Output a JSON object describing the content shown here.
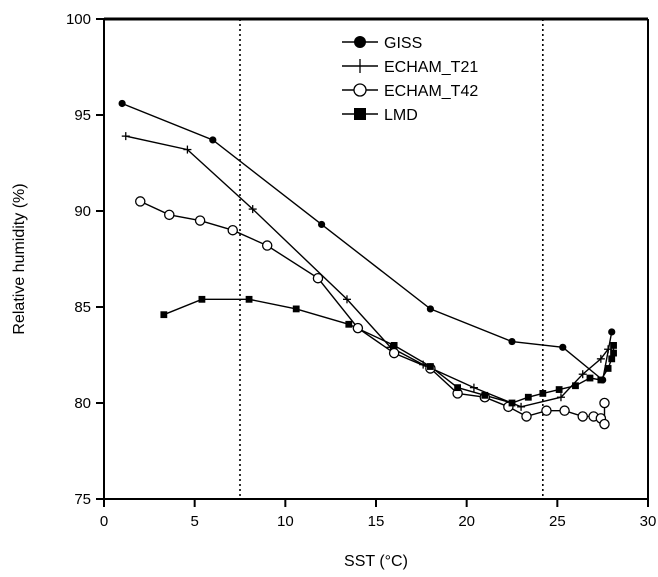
{
  "chart_data": {
    "type": "line",
    "xlabel": "SST (°C)",
    "ylabel": "Relative humidity (%)",
    "xlim": [
      0,
      30
    ],
    "ylim": [
      75,
      100
    ],
    "xticks": [
      0,
      5,
      10,
      15,
      20,
      25,
      30
    ],
    "yticks": [
      75,
      80,
      85,
      90,
      95,
      100
    ],
    "xticklabels": [
      "0",
      "5",
      "10",
      "15",
      "20",
      "25",
      "30"
    ],
    "yticklabels": [
      "75",
      "80",
      "85",
      "90",
      "95",
      "100"
    ],
    "vertical_reference_lines": [
      7.5,
      24.2
    ],
    "legend_position": "top-center",
    "series": [
      {
        "name": "GISS",
        "marker": "filled-circle",
        "x": [
          1.0,
          6.0,
          12.0,
          18.0,
          22.5,
          25.3,
          27.5,
          28.0
        ],
        "y": [
          95.6,
          93.7,
          89.3,
          84.9,
          83.2,
          82.9,
          81.2,
          83.7
        ]
      },
      {
        "name": "ECHAM_T21",
        "marker": "plus",
        "x": [
          1.2,
          4.6,
          8.2,
          13.4,
          15.8,
          17.6,
          20.4,
          23.0,
          25.2,
          26.4,
          27.4,
          27.8
        ],
        "y": [
          93.9,
          93.2,
          90.1,
          85.4,
          82.9,
          82.0,
          80.8,
          79.8,
          80.3,
          81.5,
          82.3,
          82.8
        ]
      },
      {
        "name": "ECHAM_T42",
        "marker": "open-circle",
        "x": [
          2.0,
          3.6,
          5.3,
          7.1,
          9.0,
          11.8,
          14.0,
          16.0,
          18.0,
          19.5,
          21.0,
          22.3,
          23.3,
          24.4,
          25.4,
          26.4,
          27.0,
          27.4,
          27.6,
          27.6
        ],
        "y": [
          90.5,
          89.8,
          89.5,
          89.0,
          88.2,
          86.5,
          83.9,
          82.6,
          81.8,
          80.5,
          80.3,
          79.8,
          79.3,
          79.6,
          79.6,
          79.3,
          79.3,
          79.2,
          78.9,
          80.0
        ]
      },
      {
        "name": "LMD",
        "marker": "filled-square",
        "x": [
          3.3,
          5.4,
          8.0,
          10.6,
          13.5,
          16.0,
          18.0,
          19.5,
          21.0,
          22.5,
          23.4,
          24.2,
          25.1,
          26.0,
          26.8,
          27.4,
          27.8,
          28.0,
          28.1,
          28.1
        ],
        "y": [
          84.6,
          85.4,
          85.4,
          84.9,
          84.1,
          83.0,
          81.9,
          80.8,
          80.4,
          80.0,
          80.3,
          80.5,
          80.7,
          80.9,
          81.3,
          81.2,
          81.8,
          82.3,
          82.6,
          83.0
        ]
      }
    ]
  }
}
